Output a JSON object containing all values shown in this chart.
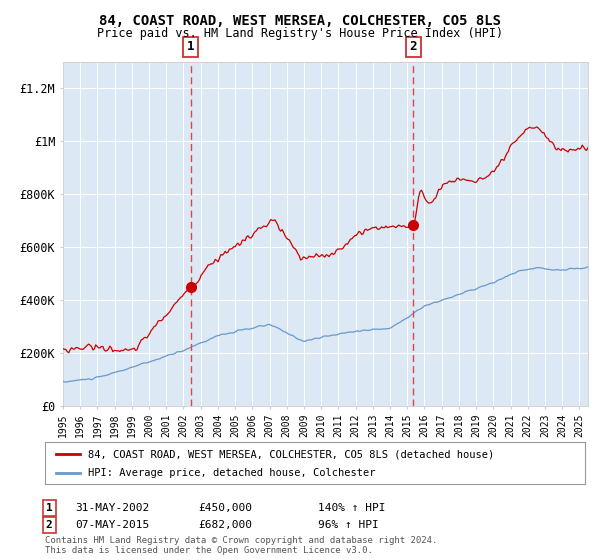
{
  "title": "84, COAST ROAD, WEST MERSEA, COLCHESTER, CO5 8LS",
  "subtitle": "Price paid vs. HM Land Registry's House Price Index (HPI)",
  "legend_line1": "84, COAST ROAD, WEST MERSEA, COLCHESTER, CO5 8LS (detached house)",
  "legend_line2": "HPI: Average price, detached house, Colchester",
  "annotation1_date": "31-MAY-2002",
  "annotation1_price": "£450,000",
  "annotation1_hpi": "140% ↑ HPI",
  "annotation1_year": 2002.42,
  "annotation2_date": "07-MAY-2015",
  "annotation2_price": "£682,000",
  "annotation2_hpi": "96% ↑ HPI",
  "annotation2_year": 2015.36,
  "annotation1_value": 450000,
  "annotation2_value": 682000,
  "footnote1": "Contains HM Land Registry data © Crown copyright and database right 2024.",
  "footnote2": "This data is licensed under the Open Government Licence v3.0.",
  "fig_bg": "#ffffff",
  "plot_bg": "#dce9f5",
  "red_color": "#cc0000",
  "blue_color": "#6699cc",
  "grid_color": "#ffffff",
  "dashed_color": "#dd4444",
  "ylim_min": 0,
  "ylim_max": 1300000,
  "xmin": 1995,
  "xmax": 2025.5
}
